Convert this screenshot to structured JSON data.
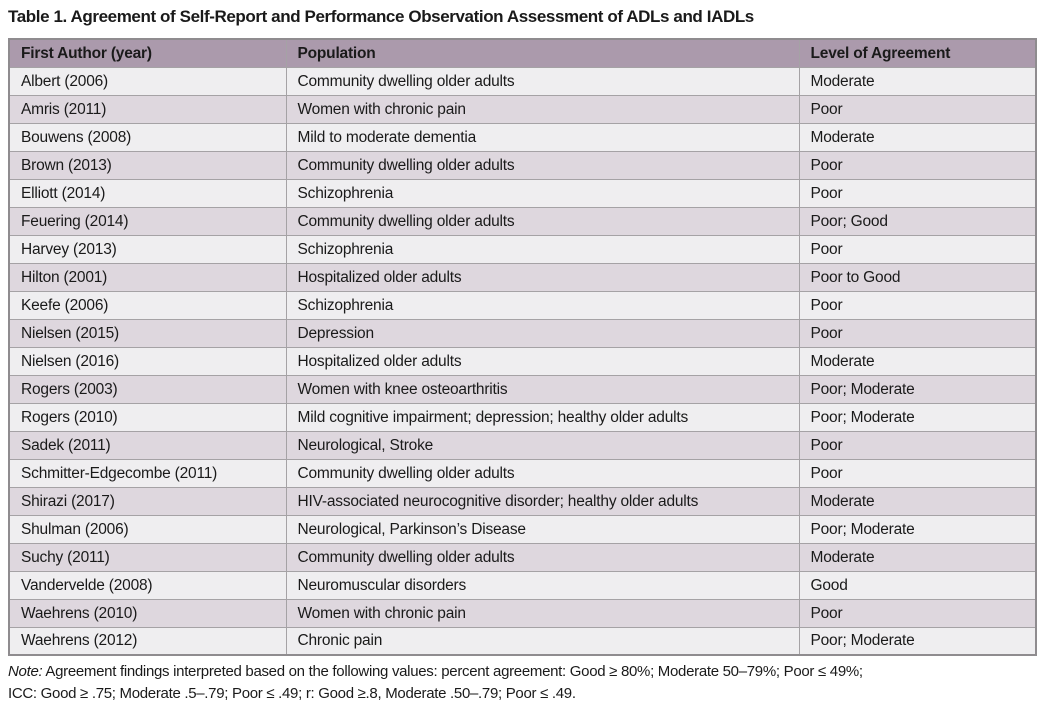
{
  "title": "Table 1. Agreement of Self-Report and Performance Observation Assessment of ADLs and IADLs",
  "table": {
    "columns": [
      "First Author (year)",
      "Population",
      "Level of Agreement"
    ],
    "rows": [
      [
        "Albert (2006)",
        "Community dwelling older adults",
        "Moderate"
      ],
      [
        "Amris (2011)",
        "Women with chronic pain",
        "Poor"
      ],
      [
        "Bouwens (2008)",
        "Mild to moderate dementia",
        "Moderate"
      ],
      [
        "Brown (2013)",
        "Community dwelling older adults",
        "Poor"
      ],
      [
        "Elliott (2014)",
        "Schizophrenia",
        "Poor"
      ],
      [
        "Feuering (2014)",
        "Community dwelling older adults",
        "Poor; Good"
      ],
      [
        "Harvey (2013)",
        "Schizophrenia",
        "Poor"
      ],
      [
        "Hilton (2001)",
        "Hospitalized older adults",
        "Poor to Good"
      ],
      [
        "Keefe (2006)",
        "Schizophrenia",
        "Poor"
      ],
      [
        "Nielsen (2015)",
        "Depression",
        "Poor"
      ],
      [
        "Nielsen (2016)",
        "Hospitalized older adults",
        "Moderate"
      ],
      [
        "Rogers (2003)",
        "Women with knee osteoarthritis",
        "Poor; Moderate"
      ],
      [
        "Rogers (2010)",
        "Mild cognitive impairment; depression; healthy older adults",
        "Poor; Moderate"
      ],
      [
        "Sadek (2011)",
        "Neurological, Stroke",
        "Poor"
      ],
      [
        "Schmitter-Edgecombe (2011)",
        "Community dwelling older adults",
        "Poor"
      ],
      [
        "Shirazi (2017)",
        "HIV-associated neurocognitive disorder; healthy older adults",
        "Moderate"
      ],
      [
        "Shulman (2006)",
        "Neurological, Parkinson’s Disease",
        "Poor; Moderate"
      ],
      [
        "Suchy (2011)",
        "Community dwelling older adults",
        "Moderate"
      ],
      [
        "Vandervelde (2008)",
        "Neuromuscular disorders",
        "Good"
      ],
      [
        "Waehrens (2010)",
        "Women with chronic pain",
        "Poor"
      ],
      [
        "Waehrens (2012)",
        "Chronic pain",
        "Poor; Moderate"
      ]
    ]
  },
  "note": {
    "label": "Note:",
    "line1": "Agreement findings interpreted based on the following values: percent agreement: Good ≥ 80%; Moderate 50–79%; Poor ≤ 49%;",
    "line2": "ICC: Good ≥ .75; Moderate .5–.79; Poor ≤ .49; r: Good ≥.8, Moderate .50–.79; Poor ≤ .49."
  },
  "colors": {
    "header_bg": "#ab9aac",
    "row_light": "#efeef0",
    "row_dark": "#ded7de",
    "border_outer": "#8f8c8f",
    "border_inner": "#a5a2a5"
  }
}
